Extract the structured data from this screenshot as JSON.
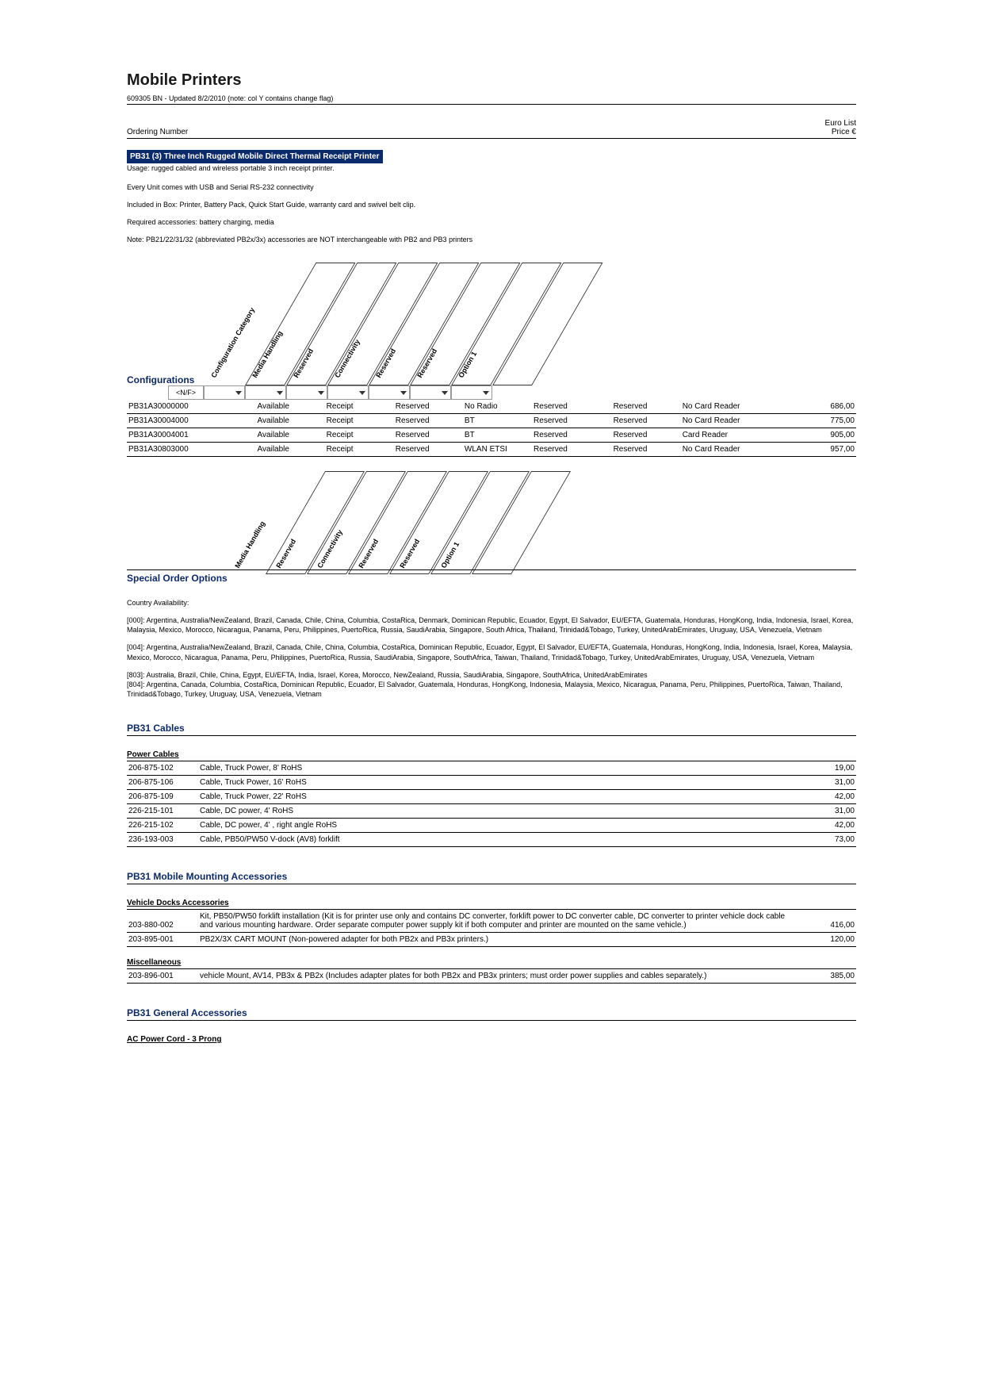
{
  "title": "Mobile Printers",
  "docline": "609305 BN - Updated 8/2/2010 (note: col Y contains change flag)",
  "header": {
    "left": "Ordering Number",
    "right1": "Euro List",
    "right2": "Price €"
  },
  "bluebar": "PB31 (3) Three Inch Rugged Mobile Direct Thermal Receipt Printer",
  "usage": "Usage: rugged cabled and wireless portable 3 inch receipt printer.",
  "desc1": "Every Unit comes with USB and Serial RS-232 connectivity",
  "desc2": "Included in Box: Printer, Battery Pack, Quick Start Guide, warranty card and swivel belt clip.",
  "desc3": "Required accessories: battery charging, media",
  "desc4": "Note: PB21/22/31/32 (abbreviated PB2x/3x) accessories are NOT interchangeable with PB2 and PB3 printers",
  "configLabel": "Configurations",
  "diagHeaders": [
    "Configuration Category",
    "Media Handling",
    "Reserved",
    "Connectivity",
    "Reserved",
    "Reserved",
    "Option 1"
  ],
  "nf": "<N/F>",
  "configRows": [
    {
      "pn": "PB31A30000000",
      "c": [
        "Available",
        "Receipt",
        "Reserved",
        "No Radio",
        "Reserved",
        "Reserved",
        "No Card Reader"
      ],
      "price": "686,00"
    },
    {
      "pn": "PB31A30004000",
      "c": [
        "Available",
        "Receipt",
        "Reserved",
        "BT",
        "Reserved",
        "Reserved",
        "No Card Reader"
      ],
      "price": "775,00"
    },
    {
      "pn": "PB31A30004001",
      "c": [
        "Available",
        "Receipt",
        "Reserved",
        "BT",
        "Reserved",
        "Reserved",
        "Card Reader"
      ],
      "price": "905,00"
    },
    {
      "pn": "PB31A30803000",
      "c": [
        "Available",
        "Receipt",
        "Reserved",
        "WLAN ETSI",
        "Reserved",
        "Reserved",
        "No Card Reader"
      ],
      "price": "957,00"
    }
  ],
  "specialLabel": "Special Order Options",
  "diagHeaders2": [
    "Media Handling",
    "Reserved",
    "Connectivity",
    "Reserved",
    "Reserved",
    "Option 1"
  ],
  "countryTitle": "Country Availability:",
  "country000": "[000]: Argentina, Australia/NewZealand, Brazil, Canada, Chile, China, Columbia, CostaRica, Denmark, Dominican Republic, Ecuador, Egypt, El Salvador, EU/EFTA, Guatemala, Honduras, HongKong, India, Indonesia, Israel, Korea, Malaysia, Mexico, Morocco, Nicaragua, Panama, Peru, Philippines, PuertoRica, Russia, SaudiArabia, Singapore, South Africa, Thailand, Trinidad&Tobago, Turkey, UnitedArabEmirates, Uruguay, USA, Venezuela, Vietnam",
  "country004": "[004]: Argentina, Australia/NewZealand, Brazil, Canada, Chile, China, Columbia, CostaRica, Dominican Republic, Ecuador, Egypt, El Salvador, EU/EFTA, Guatemala, Honduras, HongKong, India, Indonesia, Israel, Korea, Malaysia, Mexico, Morocco, Nicaragua, Panama, Peru, Philippines, PuertoRica, Russia, SaudiArabia, Singapore, SouthAfrica, Taiwan, Thailand, Trinidad&Tobago, Turkey, UnitedArabEmirates, Uruguay, USA, Venezuela, Vietnam",
  "country803": "[803]: Australia, Brazil, Chile, China, Egypt, EU/EFTA, India, Israel, Korea, Morocco, NewZealand, Russia, SaudiArabia, Singapore, SouthAfrica, UnitedArabEmirates",
  "country804": "[804]: Argentina, Canada, Columbia, CostaRica, Dominican Republic, Ecuador, El Salvador, Guatemala, Honduras, HongKong, Indonesia, Malaysia, Mexico, Nicaragua, Panama, Peru, Philippines, PuertoRica, Taiwan, Thailand, Trinidad&Tobago, Turkey, Uruguay, USA, Venezuela, Vietnam",
  "cablesTitle": "PB31 Cables",
  "powerCablesTitle": "Power Cables",
  "powerCables": [
    {
      "pn": "206-875-102",
      "d": "Cable, Truck Power, 8' RoHS",
      "p": "19,00"
    },
    {
      "pn": "206-875-106",
      "d": "Cable, Truck Power, 16' RoHS",
      "p": "31,00"
    },
    {
      "pn": "206-875-109",
      "d": "Cable, Truck Power, 22' RoHS",
      "p": "42,00"
    },
    {
      "pn": "226-215-101",
      "d": "Cable, DC power, 4' RoHS",
      "p": "31,00"
    },
    {
      "pn": "226-215-102",
      "d": "Cable, DC power, 4' , right angle RoHS",
      "p": "42,00"
    },
    {
      "pn": "236-193-003",
      "d": "Cable, PB50/PW50 V-dock (AV8) forklift",
      "p": "73,00"
    }
  ],
  "mountingTitle": "PB31 Mobile Mounting Accessories",
  "vehicleDocksTitle": "Vehicle Docks Accessories",
  "vehicleDocks": [
    {
      "pn": "203-880-002",
      "d": "Kit, PB50/PW50 forklift installation (Kit is for printer use only and contains DC converter, forklift power to DC converter cable, DC converter to printer vehicle dock cable and various mounting hardware. Order separate computer power supply kit if both computer and printer are mounted on the same vehicle.)",
      "p": "416,00"
    },
    {
      "pn": "203-895-001",
      "d": "PB2X/3X CART MOUNT (Non-powered adapter for both PB2x and PB3x printers.)",
      "p": "120,00"
    }
  ],
  "miscTitle": "Miscellaneous",
  "misc": [
    {
      "pn": "203-896-001",
      "d": "vehicle Mount, AV14, PB3x & PB2x (Includes adapter plates for both PB2x and PB3x printers; must order power supplies and cables separately.)",
      "p": "385,00"
    }
  ],
  "generalTitle": "PB31 General Accessories",
  "acTitle": "AC Power Cord - 3 Prong",
  "colors": {
    "darkblue": "#0b2a6b"
  },
  "colPositions": [
    52,
    104,
    156,
    208,
    260,
    312,
    364
  ],
  "colPositions2": [
    175,
    227,
    279,
    331,
    383,
    435
  ]
}
